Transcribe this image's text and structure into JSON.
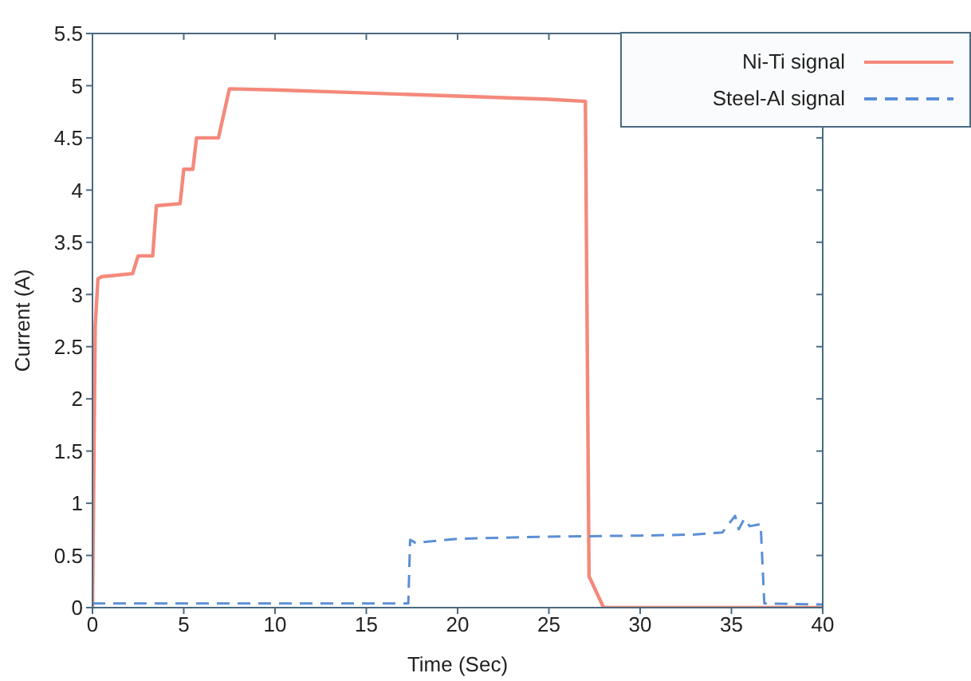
{
  "chart_data": {
    "type": "line",
    "xlabel": "Time (Sec)",
    "ylabel": "Current (A)",
    "xlim": [
      0,
      40
    ],
    "xticks": [
      0,
      5,
      10,
      15,
      20,
      25,
      30,
      35,
      40
    ],
    "ylim": [
      0,
      5.5
    ],
    "yticks": [
      0,
      0.5,
      1,
      1.5,
      2,
      2.5,
      3,
      3.5,
      4,
      4.5,
      5,
      5.5
    ],
    "grid": false,
    "legend": "top right",
    "marker": "none",
    "series": [
      {
        "name": "Ni-Ti signal",
        "color": "#f4897b",
        "line_style": "solid",
        "x": [
          0,
          0.15,
          0.3,
          0.5,
          2.2,
          2.5,
          3.3,
          3.5,
          4.8,
          5.0,
          5.5,
          5.7,
          6.9,
          7.5,
          10,
          15,
          20,
          25,
          27,
          27.2,
          28,
          40
        ],
        "values": [
          0,
          2.7,
          3.15,
          3.17,
          3.2,
          3.37,
          3.37,
          3.85,
          3.87,
          4.2,
          4.2,
          4.5,
          4.5,
          4.97,
          4.96,
          4.93,
          4.9,
          4.87,
          4.85,
          0.3,
          0,
          0
        ]
      },
      {
        "name": "Steel-Al signal",
        "color": "#5b8fd6",
        "line_style": "dashed",
        "x": [
          0,
          17.3,
          17.4,
          17.7,
          20,
          25,
          30,
          33,
          34.5,
          35.2,
          35.4,
          35.7,
          36,
          36.6,
          36.8,
          40
        ],
        "values": [
          0.04,
          0.04,
          0.65,
          0.62,
          0.66,
          0.68,
          0.69,
          0.7,
          0.72,
          0.88,
          0.75,
          0.85,
          0.78,
          0.8,
          0.04,
          0.03
        ]
      }
    ]
  }
}
